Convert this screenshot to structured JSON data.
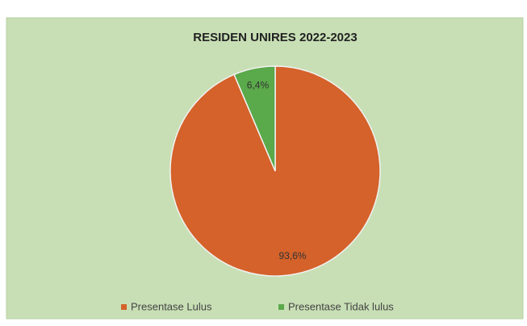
{
  "chart_data": {
    "type": "pie",
    "title": "RESIDEN UNIRES 2022-2023",
    "categories": [
      "Presentase Lulus",
      "Presentase Tidak lulus"
    ],
    "values": [
      93.6,
      6.4
    ],
    "value_labels": [
      "93,6%",
      "6,4%"
    ],
    "colors": [
      "#d4622a",
      "#5aa94a"
    ],
    "legend": "bottom"
  }
}
